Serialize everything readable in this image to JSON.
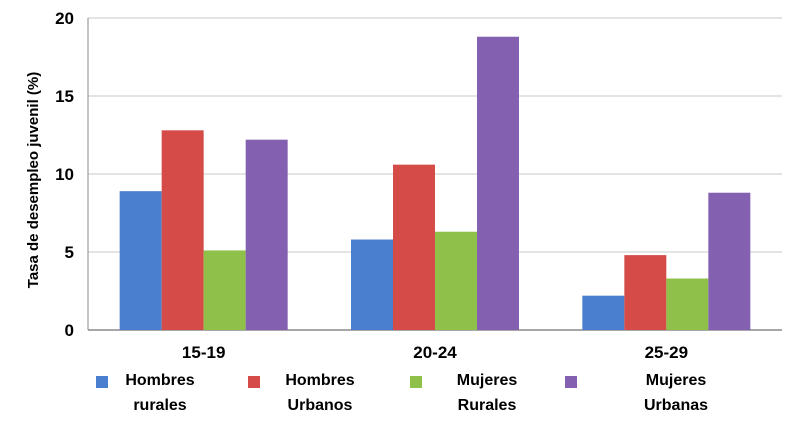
{
  "chart_data": {
    "type": "bar",
    "categories": [
      "15-19",
      "20-24",
      "25-29"
    ],
    "series": [
      {
        "name": "Hombres rurales",
        "values": [
          8.9,
          5.8,
          2.2
        ],
        "color": "#4a7fcf"
      },
      {
        "name": "Hombres Urbanos",
        "values": [
          12.8,
          10.6,
          4.8
        ],
        "color": "#d44b47"
      },
      {
        "name": "Mujeres Rurales",
        "values": [
          5.1,
          6.3,
          3.3
        ],
        "color": "#8fc04a"
      },
      {
        "name": "Mujeres Urbanas",
        "values": [
          12.2,
          18.8,
          8.8
        ],
        "color": "#8360b0"
      }
    ],
    "ylabel": "Tasa de desempleo juvenil (%)",
    "xlabel": "",
    "ylim": [
      0,
      20
    ],
    "yticks": [
      0,
      5,
      10,
      15,
      20
    ],
    "grid": true,
    "legend_position": "bottom"
  },
  "legend": {
    "items": [
      {
        "line1": "Hombres",
        "line2": "rurales"
      },
      {
        "line1": "Hombres",
        "line2": "Urbanos"
      },
      {
        "line1": "Mujeres",
        "line2": "Rurales"
      },
      {
        "line1": "Mujeres",
        "line2": "Urbanas"
      }
    ]
  }
}
